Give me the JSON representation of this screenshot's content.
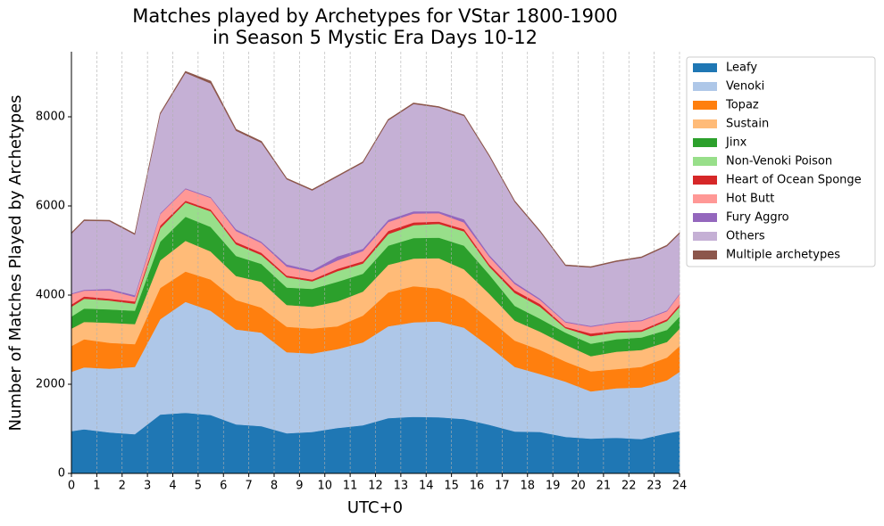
{
  "chart_data": {
    "type": "stacked_area",
    "title": [
      "Matches played by Archetypes for VStar 1800-1900",
      "in Season 5 Mystic Era Days 10-12"
    ],
    "xlabel": "UTC+0",
    "ylabel": "Number of Matches Played by Archetypes",
    "x": [
      0,
      0.5,
      1.5,
      2.5,
      3.5,
      4.5,
      5.5,
      6.5,
      7.5,
      8.5,
      9.5,
      10.5,
      11.5,
      12.5,
      13.5,
      14.5,
      15.5,
      16.5,
      17.5,
      18.5,
      19.5,
      20.5,
      21.5,
      22.5,
      23.5,
      24
    ],
    "xlim": [
      0,
      24
    ],
    "xticks": [
      0,
      1,
      2,
      3,
      4,
      5,
      6,
      7,
      8,
      9,
      10,
      11,
      12,
      13,
      14,
      15,
      16,
      17,
      18,
      19,
      20,
      21,
      22,
      23,
      24
    ],
    "ylim": [
      0,
      9460
    ],
    "yticks": [
      0,
      2000,
      4000,
      6000,
      8000
    ],
    "grid": "x",
    "legend": "outside upper right",
    "series": [
      {
        "name": "Leafy",
        "color": "#1f77b4",
        "values": [
          950,
          990,
          920,
          880,
          1320,
          1360,
          1310,
          1100,
          1060,
          900,
          930,
          1020,
          1080,
          1240,
          1270,
          1260,
          1220,
          1090,
          940,
          930,
          820,
          780,
          800,
          770,
          900,
          950
        ]
      },
      {
        "name": "Venoki",
        "color": "#aec7e8",
        "values": [
          1330,
          1390,
          1430,
          1510,
          2140,
          2490,
          2340,
          2130,
          2100,
          1820,
          1760,
          1770,
          1860,
          2060,
          2120,
          2150,
          2050,
          1760,
          1450,
          1300,
          1240,
          1060,
          1110,
          1160,
          1190,
          1330
        ]
      },
      {
        "name": "Topaz",
        "color": "#ff7f0e",
        "values": [
          580,
          630,
          580,
          510,
          700,
          680,
          700,
          660,
          560,
          570,
          560,
          510,
          600,
          760,
          810,
          740,
          650,
          610,
          590,
          540,
          450,
          450,
          430,
          460,
          510,
          580
        ]
      },
      {
        "name": "Sustain",
        "color": "#ffbb78",
        "values": [
          390,
          390,
          450,
          450,
          620,
          690,
          630,
          540,
          580,
          490,
          490,
          560,
          540,
          620,
          620,
          680,
          660,
          570,
          450,
          410,
          380,
          340,
          390,
          380,
          350,
          390
        ]
      },
      {
        "name": "Jinx",
        "color": "#2ca02c",
        "values": [
          270,
          300,
          300,
          300,
          420,
          540,
          550,
          450,
          400,
          390,
          400,
          440,
          400,
          430,
          460,
          460,
          530,
          430,
          330,
          290,
          270,
          280,
          280,
          280,
          270,
          270
        ]
      },
      {
        "name": "Non-Venoki Poison",
        "color": "#98df8a",
        "values": [
          220,
          220,
          200,
          160,
          300,
          320,
          350,
          260,
          200,
          230,
          170,
          240,
          230,
          260,
          290,
          310,
          320,
          180,
          290,
          270,
          100,
          170,
          150,
          130,
          200,
          220
        ]
      },
      {
        "name": "Heart of Ocean Sponge",
        "color": "#d62728",
        "values": [
          50,
          50,
          40,
          50,
          60,
          40,
          40,
          50,
          50,
          40,
          40,
          50,
          50,
          70,
          60,
          50,
          50,
          50,
          60,
          60,
          30,
          60,
          40,
          40,
          40,
          50
        ]
      },
      {
        "name": "Hot Butt",
        "color": "#ff9896",
        "values": [
          230,
          130,
          190,
          100,
          260,
          260,
          260,
          250,
          220,
          200,
          170,
          190,
          230,
          200,
          200,
          190,
          150,
          170,
          140,
          90,
          100,
          150,
          180,
          200,
          180,
          230
        ]
      },
      {
        "name": "Fury Aggro",
        "color": "#9467bd",
        "values": [
          20,
          20,
          30,
          40,
          20,
          20,
          20,
          40,
          30,
          50,
          40,
          90,
          50,
          50,
          50,
          40,
          70,
          40,
          40,
          30,
          20,
          20,
          20,
          20,
          20,
          20
        ]
      },
      {
        "name": "Others",
        "color": "#c5b0d5",
        "values": [
          1340,
          1550,
          1520,
          1360,
          2220,
          2590,
          2550,
          2210,
          2220,
          1910,
          1790,
          1790,
          1930,
          2230,
          2410,
          2330,
          2320,
          2210,
          1800,
          1500,
          1250,
          1310,
          1350,
          1400,
          1440,
          1340
        ]
      },
      {
        "name": "Multiple archetypes",
        "color": "#8c564b",
        "values": [
          20,
          20,
          20,
          20,
          20,
          30,
          50,
          30,
          30,
          20,
          20,
          20,
          20,
          20,
          20,
          20,
          20,
          20,
          20,
          20,
          20,
          20,
          20,
          20,
          20,
          20
        ]
      }
    ]
  }
}
